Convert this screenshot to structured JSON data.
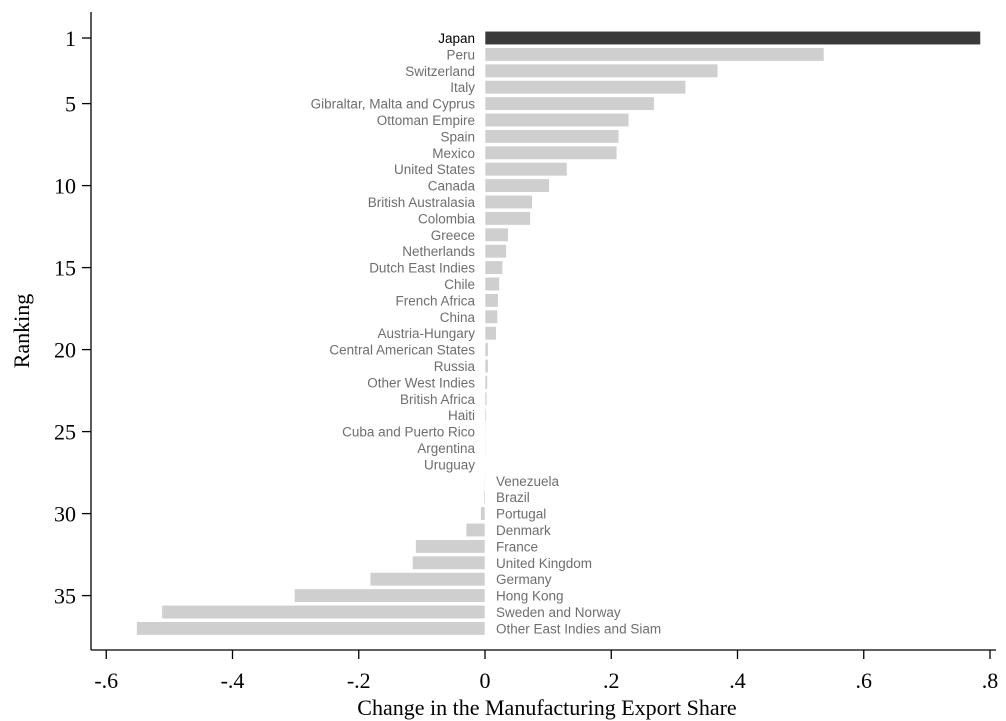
{
  "chart_data": {
    "type": "bar",
    "orientation": "horizontal",
    "title": "",
    "xlabel": "Change in the Manufacturing Export Share",
    "ylabel": "Ranking",
    "xlim": [
      -0.62,
      0.81
    ],
    "ylim": [
      0.5,
      37.5
    ],
    "xticks": [
      -0.6,
      -0.4,
      -0.2,
      0,
      0.2,
      0.4,
      0.6,
      0.8
    ],
    "xtick_labels": [
      "-.6",
      "-.4",
      "-.2",
      "0",
      ".2",
      ".4",
      ".6",
      ".8"
    ],
    "yticks": [
      1,
      5,
      10,
      15,
      20,
      25,
      30,
      35
    ],
    "ytick_labels": [
      "1",
      "5",
      "10",
      "15",
      "20",
      "25",
      "30",
      "35"
    ],
    "grid": false,
    "legend": "none",
    "colors": {
      "highlight": "#3a3a3a",
      "default": "#cfcfcf",
      "label": "#6e6e6e"
    },
    "bars": [
      {
        "rank": 1,
        "country": "Japan",
        "value": 0.785,
        "highlight": true
      },
      {
        "rank": 2,
        "country": "Peru",
        "value": 0.537
      },
      {
        "rank": 3,
        "country": "Switzerland",
        "value": 0.369
      },
      {
        "rank": 4,
        "country": "Italy",
        "value": 0.318
      },
      {
        "rank": 5,
        "country": "Gibraltar, Malta and Cyprus",
        "value": 0.268
      },
      {
        "rank": 6,
        "country": "Ottoman Empire",
        "value": 0.228
      },
      {
        "rank": 7,
        "country": "Spain",
        "value": 0.212
      },
      {
        "rank": 8,
        "country": "Mexico",
        "value": 0.209
      },
      {
        "rank": 9,
        "country": "United States",
        "value": 0.13
      },
      {
        "rank": 10,
        "country": "Canada",
        "value": 0.102
      },
      {
        "rank": 11,
        "country": "British Australasia",
        "value": 0.075
      },
      {
        "rank": 12,
        "country": "Colombia",
        "value": 0.072
      },
      {
        "rank": 13,
        "country": "Greece",
        "value": 0.037
      },
      {
        "rank": 14,
        "country": "Netherlands",
        "value": 0.034
      },
      {
        "rank": 15,
        "country": "Dutch East Indies",
        "value": 0.028
      },
      {
        "rank": 16,
        "country": "Chile",
        "value": 0.023
      },
      {
        "rank": 17,
        "country": "French Africa",
        "value": 0.021
      },
      {
        "rank": 18,
        "country": "China",
        "value": 0.02
      },
      {
        "rank": 19,
        "country": "Austria-Hungary",
        "value": 0.018
      },
      {
        "rank": 20,
        "country": "Central American States",
        "value": 0.005
      },
      {
        "rank": 21,
        "country": "Russia",
        "value": 0.005
      },
      {
        "rank": 22,
        "country": "Other West Indies",
        "value": 0.004
      },
      {
        "rank": 23,
        "country": "British Africa",
        "value": 0.003
      },
      {
        "rank": 24,
        "country": "Haiti",
        "value": 0.002
      },
      {
        "rank": 25,
        "country": "Cuba and Puerto Rico",
        "value": 0.001
      },
      {
        "rank": 26,
        "country": "Argentina",
        "value": 0.001
      },
      {
        "rank": 27,
        "country": "Uruguay",
        "value": 0.0005
      },
      {
        "rank": 28,
        "country": "Venezuela",
        "value": -0.001
      },
      {
        "rank": 29,
        "country": "Brazil",
        "value": -0.002
      },
      {
        "rank": 30,
        "country": "Portugal",
        "value": -0.007
      },
      {
        "rank": 31,
        "country": "Denmark",
        "value": -0.03
      },
      {
        "rank": 32,
        "country": "France",
        "value": -0.11
      },
      {
        "rank": 33,
        "country": "United Kingdom",
        "value": -0.115
      },
      {
        "rank": 34,
        "country": "Germany",
        "value": -0.182
      },
      {
        "rank": 35,
        "country": "Hong Kong",
        "value": -0.302
      },
      {
        "rank": 36,
        "country": "Sweden and Norway",
        "value": -0.512
      },
      {
        "rank": 37,
        "country": "Other East Indies and Siam",
        "value": -0.552
      }
    ]
  }
}
